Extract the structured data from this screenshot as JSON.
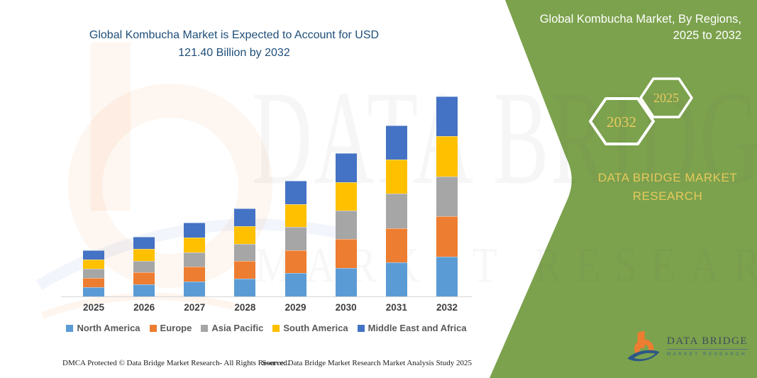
{
  "title": {
    "line1": "Global Kombucha Market is Expected to Account for USD",
    "line2": "121.40 Billion by 2032"
  },
  "panel": {
    "heading_line1": "Global Kombucha Market, By Regions,",
    "heading_line2": "2025 to 2032",
    "hexagons": [
      {
        "label": "2032"
      },
      {
        "label": "2025"
      }
    ],
    "brand_line1": "DATA BRIDGE MARKET",
    "brand_line2": "RESEARCH",
    "background_color": "#7CA24D",
    "accent_gold": "#E5C95C"
  },
  "watermark": {
    "line1": "DATA BRIDGE",
    "line2": "MARKET RESEARCH"
  },
  "logo": {
    "name": "DATA BRIDGE",
    "subtitle": "MARKET RESEARCH"
  },
  "footer": {
    "left": "DMCA Protected © Data Bridge Market Research-  All Rights Reserved.",
    "right": "Source: Data Bridge Market Research  Market Analysis Study 2025"
  },
  "chart_data": {
    "type": "bar",
    "stacked": true,
    "title": "Global Kombucha Market is Expected to Account for USD 121.40 Billion by 2032",
    "unit": "USD Billion",
    "categories": [
      "2025",
      "2026",
      "2027",
      "2028",
      "2029",
      "2030",
      "2031",
      "2032"
    ],
    "series": [
      {
        "name": "North America",
        "color": "#5B9BD5",
        "values": [
          5.6,
          7.24,
          8.96,
          10.68,
          14.04,
          17.38,
          20.74,
          24.28
        ]
      },
      {
        "name": "Europe",
        "color": "#ED7D31",
        "values": [
          5.6,
          7.24,
          8.96,
          10.68,
          14.04,
          17.38,
          20.74,
          24.28
        ]
      },
      {
        "name": "Asia Pacific",
        "color": "#A6A6A6",
        "values": [
          5.6,
          7.24,
          8.96,
          10.68,
          14.04,
          17.38,
          20.74,
          24.28
        ]
      },
      {
        "name": "South America",
        "color": "#FFC000",
        "values": [
          5.6,
          7.24,
          8.96,
          10.68,
          14.04,
          17.38,
          20.74,
          24.28
        ]
      },
      {
        "name": "Middle East and Africa",
        "color": "#4472C4",
        "values": [
          5.6,
          7.24,
          8.96,
          10.68,
          14.04,
          17.38,
          20.74,
          24.28
        ]
      }
    ],
    "totals": [
      28.0,
      36.2,
      44.8,
      53.4,
      70.2,
      86.9,
      103.7,
      121.4
    ],
    "ylim": [
      0,
      130
    ],
    "grid": false,
    "legend_position": "bottom",
    "x_axis_labels_visible": true,
    "y_axis_labels_visible": false
  }
}
